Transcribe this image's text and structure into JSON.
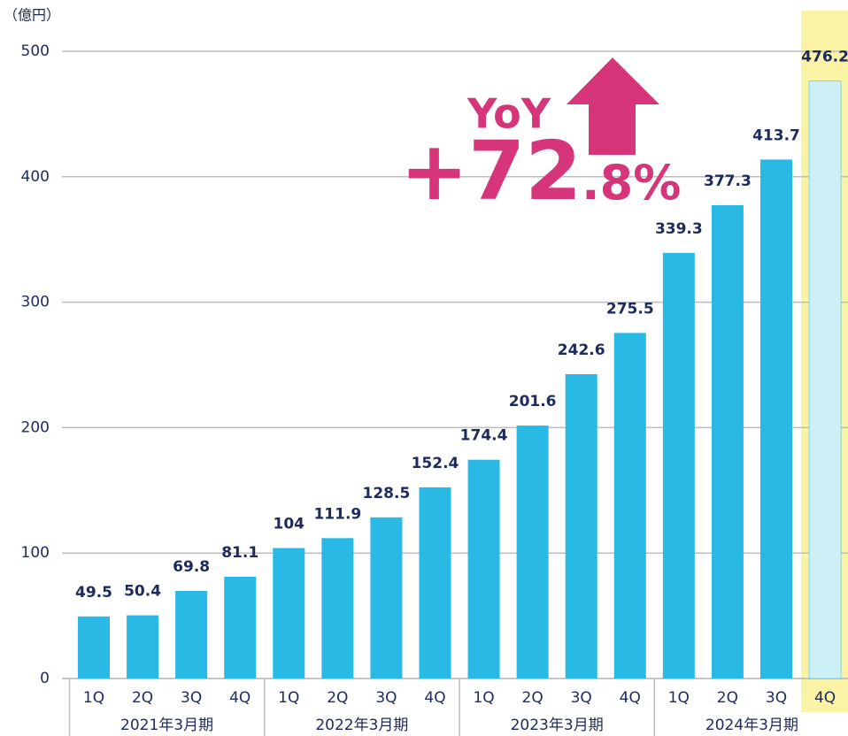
{
  "chart_data": {
    "type": "bar",
    "unit_label": "（億円）",
    "categories": [
      "1Q",
      "2Q",
      "3Q",
      "4Q",
      "1Q",
      "2Q",
      "3Q",
      "4Q",
      "1Q",
      "2Q",
      "3Q",
      "4Q",
      "1Q",
      "2Q",
      "3Q",
      "4Q"
    ],
    "groups": [
      "2021年3月期",
      "2022年3月期",
      "2023年3月期",
      "2024年3月期"
    ],
    "values": [
      49.5,
      50.4,
      69.8,
      81.1,
      104,
      111.9,
      128.5,
      152.4,
      174.4,
      201.6,
      242.6,
      275.5,
      339.3,
      377.3,
      413.7,
      476.2
    ],
    "colors": [
      "#29b9e5",
      "#29b9e5",
      "#29b9e5",
      "#29b9e5",
      "#29b9e5",
      "#29b9e5",
      "#29b9e5",
      "#29b9e5",
      "#29b9e5",
      "#29b9e5",
      "#29b9e5",
      "#29b9e5",
      "#29b9e5",
      "#29b9e5",
      "#29b9e5",
      "#cdf0f7"
    ],
    "highlight": {
      "category_index": 15,
      "color": "#faf3a5"
    },
    "ylim": [
      0,
      500
    ],
    "yticks": [
      0,
      100,
      200,
      300,
      400,
      500
    ],
    "grid": true,
    "annotation": {
      "label": "YoY",
      "value_main": "+72",
      "value_sub": ".8%",
      "color": "#d63679"
    }
  }
}
